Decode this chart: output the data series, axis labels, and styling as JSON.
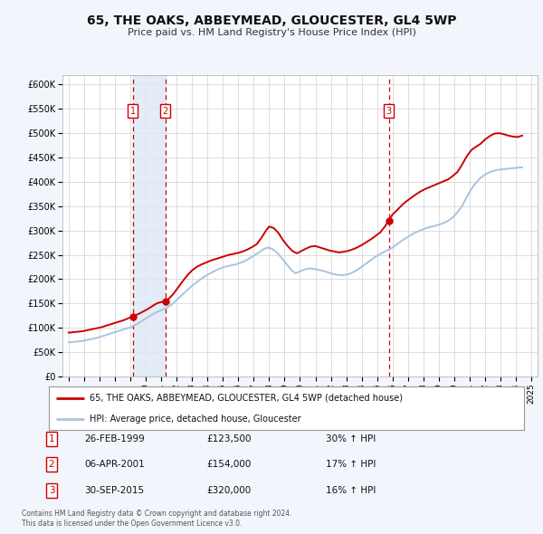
{
  "title": "65, THE OAKS, ABBEYMEAD, GLOUCESTER, GL4 5WP",
  "subtitle": "Price paid vs. HM Land Registry's House Price Index (HPI)",
  "ylim": [
    0,
    620000
  ],
  "yticks": [
    0,
    50000,
    100000,
    150000,
    200000,
    250000,
    300000,
    350000,
    400000,
    450000,
    500000,
    550000,
    600000
  ],
  "xlim_start": 1994.6,
  "xlim_end": 2025.4,
  "bg_color": "#f2f5fb",
  "plot_bg": "#ffffff",
  "grid_color": "#d0d0d0",
  "sale_color": "#cc0000",
  "hpi_color": "#a8c4e0",
  "shade_color": "#dce8f5",
  "legend_label_sale": "65, THE OAKS, ABBEYMEAD, GLOUCESTER, GL4 5WP (detached house)",
  "legend_label_hpi": "HPI: Average price, detached house, Gloucester",
  "transactions": [
    {
      "label": "1",
      "date_num": 1999.15,
      "price": 123500,
      "pct": "30%",
      "date_str": "26-FEB-1999",
      "price_str": "£123,500"
    },
    {
      "label": "2",
      "date_num": 2001.27,
      "price": 154000,
      "pct": "17%",
      "date_str": "06-APR-2001",
      "price_str": "£154,000"
    },
    {
      "label": "3",
      "date_num": 2015.75,
      "price": 320000,
      "pct": "16%",
      "date_str": "30-SEP-2015",
      "price_str": "£320,000"
    }
  ],
  "footer1": "Contains HM Land Registry data © Crown copyright and database right 2024.",
  "footer2": "This data is licensed under the Open Government Licence v3.0.",
  "sale_line_data": {
    "x": [
      1995.0,
      1995.3,
      1995.6,
      1995.9,
      1996.2,
      1996.5,
      1996.8,
      1997.1,
      1997.4,
      1997.7,
      1998.0,
      1998.3,
      1998.6,
      1998.9,
      1999.15,
      1999.5,
      1999.8,
      2000.1,
      2000.4,
      2000.7,
      2001.0,
      2001.27,
      2001.5,
      2001.8,
      2002.1,
      2002.4,
      2002.7,
      2003.0,
      2003.3,
      2003.6,
      2003.9,
      2004.2,
      2004.5,
      2004.8,
      2005.1,
      2005.4,
      2005.7,
      2006.0,
      2006.3,
      2006.6,
      2006.9,
      2007.2,
      2007.5,
      2007.8,
      2008.0,
      2008.3,
      2008.6,
      2008.9,
      2009.2,
      2009.5,
      2009.8,
      2010.1,
      2010.4,
      2010.7,
      2011.0,
      2011.3,
      2011.6,
      2011.9,
      2012.2,
      2012.5,
      2012.8,
      2013.1,
      2013.4,
      2013.7,
      2014.0,
      2014.3,
      2014.6,
      2014.9,
      2015.2,
      2015.5,
      2015.75,
      2016.0,
      2016.3,
      2016.6,
      2016.9,
      2017.2,
      2017.5,
      2017.8,
      2018.1,
      2018.4,
      2018.7,
      2019.0,
      2019.3,
      2019.6,
      2019.9,
      2020.2,
      2020.5,
      2020.8,
      2021.1,
      2021.4,
      2021.7,
      2022.0,
      2022.3,
      2022.6,
      2022.9,
      2023.2,
      2023.5,
      2023.8,
      2024.1,
      2024.4
    ],
    "y": [
      90000,
      91000,
      92000,
      93000,
      95000,
      97000,
      99000,
      101000,
      104000,
      107000,
      110000,
      113000,
      116000,
      120000,
      123500,
      128000,
      133000,
      138000,
      144000,
      150000,
      153000,
      154000,
      160000,
      170000,
      183000,
      196000,
      208000,
      218000,
      225000,
      230000,
      234000,
      238000,
      241000,
      244000,
      247000,
      250000,
      252000,
      254000,
      257000,
      261000,
      266000,
      272000,
      285000,
      300000,
      308000,
      305000,
      295000,
      280000,
      268000,
      258000,
      253000,
      258000,
      263000,
      267000,
      268000,
      265000,
      262000,
      259000,
      257000,
      255000,
      256000,
      258000,
      261000,
      265000,
      270000,
      276000,
      282000,
      289000,
      296000,
      308000,
      320000,
      333000,
      342000,
      352000,
      360000,
      367000,
      374000,
      380000,
      385000,
      389000,
      393000,
      397000,
      401000,
      405000,
      412000,
      420000,
      435000,
      452000,
      465000,
      472000,
      478000,
      487000,
      494000,
      499000,
      500000,
      498000,
      495000,
      493000,
      492000,
      495000
    ]
  },
  "hpi_line_data": {
    "x": [
      1995.0,
      1995.3,
      1995.6,
      1995.9,
      1996.2,
      1996.5,
      1996.8,
      1997.1,
      1997.4,
      1997.7,
      1998.0,
      1998.3,
      1998.6,
      1998.9,
      1999.2,
      1999.5,
      1999.8,
      2000.1,
      2000.4,
      2000.7,
      2001.0,
      2001.3,
      2001.6,
      2001.9,
      2002.2,
      2002.5,
      2002.8,
      2003.1,
      2003.4,
      2003.7,
      2004.0,
      2004.3,
      2004.6,
      2004.9,
      2005.2,
      2005.5,
      2005.8,
      2006.1,
      2006.4,
      2006.7,
      2007.0,
      2007.3,
      2007.6,
      2007.9,
      2008.2,
      2008.5,
      2008.8,
      2009.1,
      2009.4,
      2009.7,
      2010.0,
      2010.3,
      2010.6,
      2010.9,
      2011.2,
      2011.5,
      2011.8,
      2012.1,
      2012.4,
      2012.7,
      2013.0,
      2013.3,
      2013.6,
      2013.9,
      2014.2,
      2014.5,
      2014.8,
      2015.1,
      2015.4,
      2015.7,
      2016.0,
      2016.3,
      2016.6,
      2016.9,
      2017.2,
      2017.5,
      2017.8,
      2018.1,
      2018.4,
      2018.7,
      2019.0,
      2019.3,
      2019.6,
      2019.9,
      2020.2,
      2020.5,
      2020.8,
      2021.1,
      2021.4,
      2021.7,
      2022.0,
      2022.3,
      2022.6,
      2022.9,
      2023.2,
      2023.5,
      2023.8,
      2024.1,
      2024.4
    ],
    "y": [
      70000,
      71000,
      72000,
      73000,
      75000,
      77000,
      79000,
      82000,
      85000,
      88000,
      91000,
      94000,
      97000,
      100000,
      104000,
      109000,
      115000,
      121000,
      127000,
      132000,
      136000,
      140000,
      146000,
      154000,
      163000,
      172000,
      181000,
      189000,
      196000,
      203000,
      209000,
      214000,
      219000,
      223000,
      226000,
      228000,
      230000,
      233000,
      237000,
      242000,
      248000,
      254000,
      261000,
      265000,
      262000,
      255000,
      244000,
      232000,
      220000,
      212000,
      216000,
      220000,
      222000,
      221000,
      219000,
      217000,
      214000,
      211000,
      209000,
      208000,
      209000,
      212000,
      217000,
      223000,
      230000,
      237000,
      244000,
      250000,
      255000,
      260000,
      265000,
      272000,
      279000,
      285000,
      291000,
      296000,
      300000,
      304000,
      307000,
      309000,
      312000,
      315000,
      320000,
      327000,
      337000,
      350000,
      368000,
      385000,
      398000,
      408000,
      415000,
      420000,
      423000,
      425000,
      426000,
      427000,
      428000,
      429000,
      430000
    ]
  }
}
